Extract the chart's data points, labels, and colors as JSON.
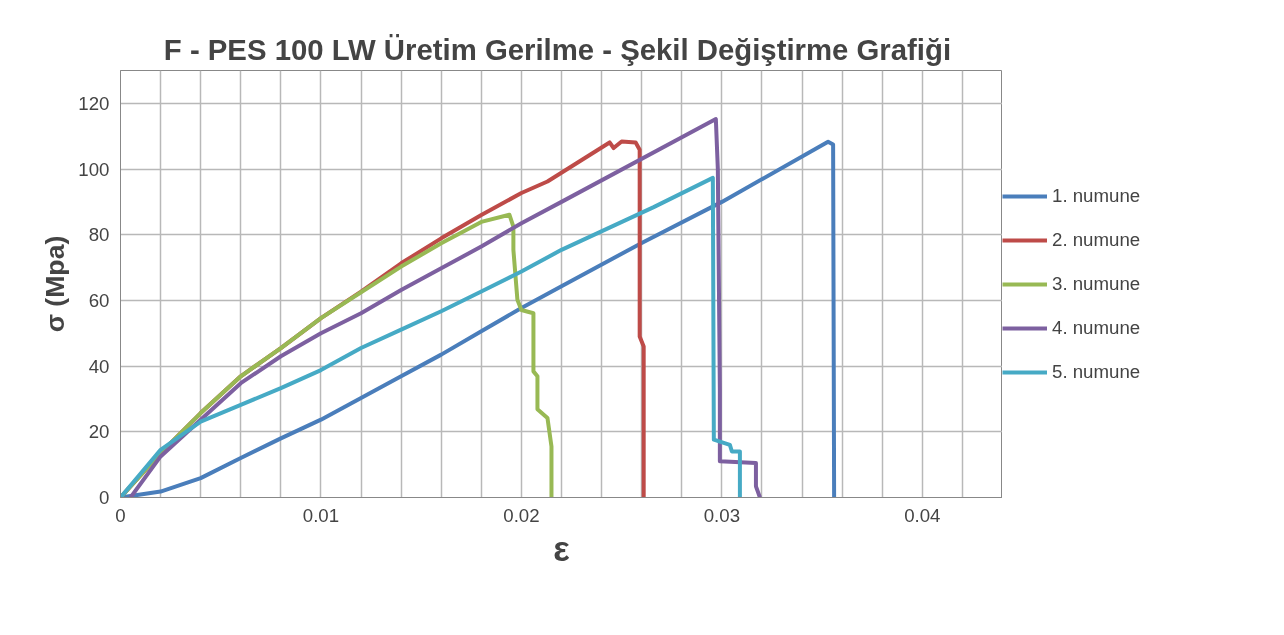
{
  "chart_data": {
    "type": "line",
    "title": "F - PES 100 LW  Üretim Gerilme - Şekil Değiştirme Grafiği",
    "xlabel": "ε",
    "ylabel": "σ (Mpa)",
    "xlim": [
      0,
      0.044
    ],
    "ylim": [
      0,
      130
    ],
    "xticks": [
      0,
      {
        "value": 0.002,
        "label": null
      },
      {
        "value": 0.004,
        "label": null
      },
      {
        "value": 0.006,
        "label": null
      },
      {
        "value": 0.008,
        "label": null
      },
      0.01,
      {
        "value": 0.012,
        "label": null
      },
      {
        "value": 0.014,
        "label": null
      },
      {
        "value": 0.016,
        "label": null
      },
      {
        "value": 0.018,
        "label": null
      },
      0.02,
      {
        "value": 0.022,
        "label": null
      },
      {
        "value": 0.024,
        "label": null
      },
      {
        "value": 0.026,
        "label": null
      },
      {
        "value": 0.028,
        "label": null
      },
      0.03,
      {
        "value": 0.032,
        "label": null
      },
      {
        "value": 0.034,
        "label": null
      },
      {
        "value": 0.036,
        "label": null
      },
      {
        "value": 0.038,
        "label": null
      },
      0.04,
      {
        "value": 0.042,
        "label": null
      },
      {
        "value": 0.044,
        "label": null
      }
    ],
    "yticks": [
      0,
      20,
      40,
      60,
      80,
      100,
      120
    ],
    "grid": true,
    "legend": "right",
    "marker": "none",
    "line_style": "solid",
    "series": [
      {
        "name": "1. numune",
        "color": "#4a7ebb",
        "x": [
          0,
          0.002,
          0.004,
          0.006,
          0.008,
          0.01,
          0.012,
          0.014,
          0.016,
          0.018,
          0.02,
          0.022,
          0.026,
          0.03,
          0.0353,
          0.03555,
          0.0356
        ],
        "values": [
          0,
          1.8,
          5.9,
          12,
          18,
          23.7,
          30.3,
          36.9,
          43.5,
          50.6,
          57.7,
          64.3,
          77.5,
          90,
          108.3,
          107.5,
          0
        ]
      },
      {
        "name": "2. numune",
        "color": "#be4b48",
        "x": [
          0,
          0.002,
          0.004,
          0.006,
          0.008,
          0.01,
          0.012,
          0.014,
          0.016,
          0.018,
          0.02,
          0.0213,
          0.0244,
          0.0246,
          0.025,
          0.0257,
          0.0259,
          0.0259,
          0.0261,
          0.0261
        ],
        "values": [
          0,
          13.5,
          25.7,
          36.9,
          45.5,
          54.6,
          62.7,
          71.3,
          78.9,
          86,
          92.7,
          96.2,
          108.1,
          106.4,
          108.4,
          108.1,
          105.9,
          49,
          46,
          0
        ]
      },
      {
        "name": "3. numune",
        "color": "#98b954",
        "x": [
          0,
          0.002,
          0.004,
          0.006,
          0.008,
          0.01,
          0.012,
          0.014,
          0.016,
          0.018,
          0.0194,
          0.0196,
          0.0196,
          0.0198,
          0.02,
          0.0206,
          0.0206,
          0.0208,
          0.0208,
          0.0213,
          0.0215,
          0.0215
        ],
        "values": [
          0,
          13.5,
          25.7,
          36.9,
          45.5,
          54.6,
          62.5,
          70.3,
          77.4,
          83.9,
          86.1,
          82.5,
          75.4,
          60.2,
          57.1,
          56.1,
          38.4,
          36.9,
          26.9,
          24.2,
          15.5,
          0
        ]
      },
      {
        "name": "4. numune",
        "color": "#7d60a0",
        "x": [
          0.0005,
          0.002,
          0.004,
          0.006,
          0.008,
          0.01,
          0.012,
          0.014,
          0.016,
          0.018,
          0.02,
          0.022,
          0.0297,
          0.0298,
          0.0299,
          0.0299,
          0.0317,
          0.0317,
          0.0319
        ],
        "values": [
          0,
          12.5,
          23.7,
          34.8,
          43,
          50,
          56.1,
          63.2,
          69.8,
          76.4,
          83.5,
          90,
          115.2,
          99.8,
          32.8,
          11,
          10.5,
          3.4,
          0
        ]
      },
      {
        "name": "5. numune",
        "color": "#46aac5",
        "x": [
          0,
          0.002,
          0.004,
          0.006,
          0.008,
          0.01,
          0.012,
          0.014,
          0.016,
          0.018,
          0.02,
          0.022,
          0.0266,
          0.02955,
          0.0296,
          0.0304,
          0.0305,
          0.0309,
          0.0309
        ],
        "values": [
          0,
          14.5,
          23.1,
          28.2,
          33.3,
          38.8,
          45.5,
          51.1,
          56.7,
          62.7,
          68.8,
          75.4,
          88.4,
          97.3,
          17.6,
          16,
          14,
          14,
          0
        ]
      }
    ]
  }
}
